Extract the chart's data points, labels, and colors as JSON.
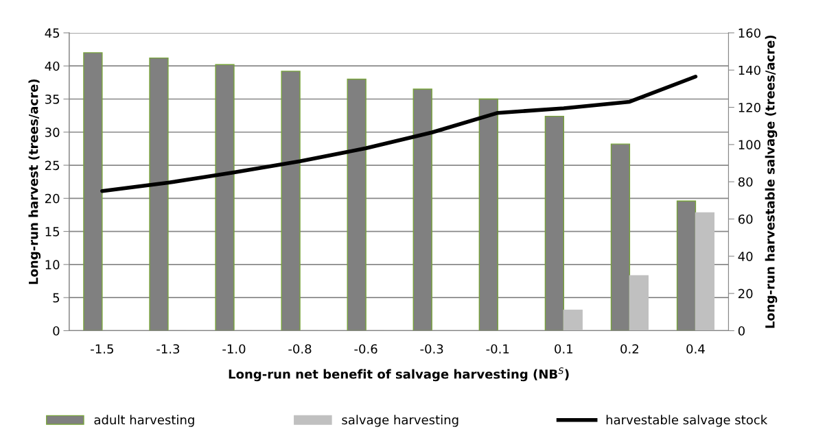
{
  "chart_data": {
    "type": "bar",
    "xlabel": "Long-run net benefit of salvage harvesting (NB$^{S}$)",
    "ylabel": "Long-run harvest (trees/acre)",
    "y2label": "Long-run harvestable salvage (trees/acre)",
    "categories": [
      "-1.5",
      "-1.3",
      "-1.0",
      "-0.8",
      "-0.6",
      "-0.3",
      "-0.1",
      "0.1",
      "0.2",
      "0.4"
    ],
    "series": [
      {
        "name": "adult harvesting",
        "color": "#808080",
        "values": [
          42,
          41.2,
          40.2,
          39.2,
          38,
          36.5,
          35,
          32.4,
          28.2,
          19.6
        ]
      },
      {
        "name": "salvage harvesting",
        "color": "#c0c0c0",
        "values": [
          0,
          0,
          0,
          0,
          0,
          0,
          0,
          3.1,
          8.3,
          17.8
        ]
      },
      {
        "name": "harvestable salvage stock",
        "type": "line",
        "axis": "y2",
        "color": "#000000",
        "values": [
          75,
          79.5,
          85,
          91,
          98,
          106.5,
          117,
          119.5,
          123,
          136.5
        ]
      }
    ],
    "ylim": [
      0,
      45
    ],
    "yticks": [
      0,
      5,
      10,
      15,
      20,
      25,
      30,
      35,
      40,
      45
    ],
    "y2lim": [
      0,
      160
    ],
    "y2ticks": [
      0,
      20,
      40,
      60,
      80,
      100,
      120,
      140,
      160
    ],
    "grid": "y",
    "legend": "bottom",
    "marker": "none",
    "line_style": "solid"
  }
}
